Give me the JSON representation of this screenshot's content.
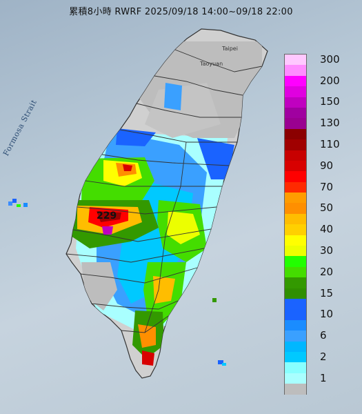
{
  "title": "累積8小時 RWRF 2025/09/18 14:00~09/18 22:00",
  "strait_label": "Formosa Strait",
  "cities": {
    "taipei": "Taipei",
    "taoyuan": "Taoyuan"
  },
  "peak_value": "229",
  "legend": {
    "bins": [
      {
        "label": "300",
        "color": "#ffc8ff"
      },
      {
        "label": "",
        "color": "#ff8cff"
      },
      {
        "label": "200",
        "color": "#ff00ff"
      },
      {
        "label": "",
        "color": "#e000e0"
      },
      {
        "label": "150",
        "color": "#c000c0"
      },
      {
        "label": "",
        "color": "#a000a0"
      },
      {
        "label": "130",
        "color": "#9a0090"
      },
      {
        "label": "",
        "color": "#8b0000"
      },
      {
        "label": "110",
        "color": "#a00000"
      },
      {
        "label": "",
        "color": "#c80000"
      },
      {
        "label": "90",
        "color": "#d80000"
      },
      {
        "label": "",
        "color": "#ff0000"
      },
      {
        "label": "70",
        "color": "#ff2a00"
      },
      {
        "label": "",
        "color": "#ff9c00"
      },
      {
        "label": "50",
        "color": "#ff8f00"
      },
      {
        "label": "",
        "color": "#ffbd00"
      },
      {
        "label": "40",
        "color": "#ffd000"
      },
      {
        "label": "",
        "color": "#ffff00"
      },
      {
        "label": "30",
        "color": "#ecff00"
      },
      {
        "label": "",
        "color": "#22ff00"
      },
      {
        "label": "20",
        "color": "#44dd00"
      },
      {
        "label": "",
        "color": "#339900"
      },
      {
        "label": "15",
        "color": "#2f8f00"
      },
      {
        "label": "",
        "color": "#1b63ff"
      },
      {
        "label": "10",
        "color": "#1a63ff"
      },
      {
        "label": "",
        "color": "#1a8cff"
      },
      {
        "label": "6",
        "color": "#3aa0ff"
      },
      {
        "label": "",
        "color": "#00b7ff"
      },
      {
        "label": "2",
        "color": "#00c9ff"
      },
      {
        "label": "",
        "color": "#88ffff"
      },
      {
        "label": "1",
        "color": "#a9ffff"
      },
      {
        "label": "",
        "color": "#bdbdbd"
      }
    ]
  }
}
